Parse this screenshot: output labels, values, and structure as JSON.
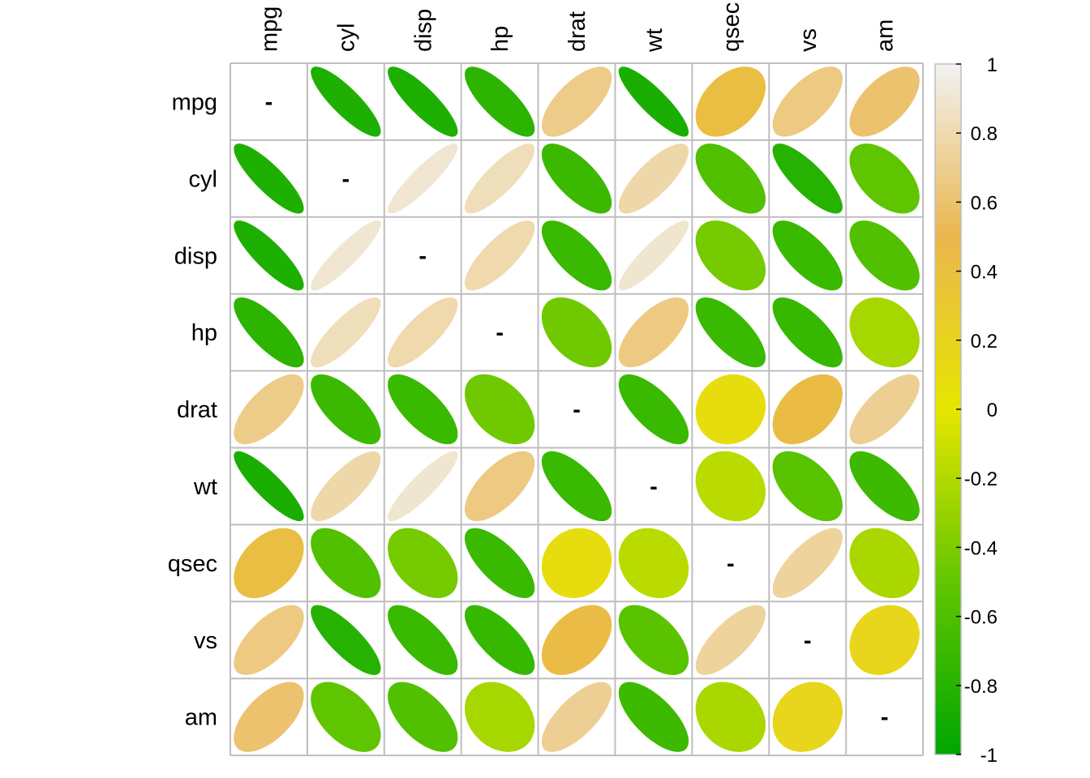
{
  "chart_data": {
    "type": "heatmap",
    "variables": [
      "mpg",
      "cyl",
      "disp",
      "hp",
      "drat",
      "wt",
      "qsec",
      "vs",
      "am"
    ],
    "matrix": [
      [
        1,
        -0.85,
        -0.85,
        -0.78,
        0.68,
        -0.87,
        0.42,
        0.66,
        0.6
      ],
      [
        -0.85,
        1,
        0.9,
        0.83,
        -0.7,
        0.78,
        -0.59,
        -0.81,
        -0.52
      ],
      [
        -0.85,
        0.9,
        1,
        0.79,
        -0.71,
        0.89,
        -0.43,
        -0.71,
        -0.59
      ],
      [
        -0.78,
        0.83,
        0.79,
        1,
        -0.45,
        0.66,
        -0.71,
        -0.72,
        -0.24
      ],
      [
        0.68,
        -0.7,
        -0.71,
        -0.45,
        1,
        -0.71,
        0.09,
        0.44,
        0.71
      ],
      [
        -0.87,
        0.78,
        0.89,
        0.66,
        -0.71,
        1,
        -0.17,
        -0.55,
        -0.69
      ],
      [
        0.42,
        -0.59,
        -0.43,
        -0.71,
        0.09,
        -0.17,
        1,
        0.74,
        -0.23
      ],
      [
        0.66,
        -0.81,
        -0.71,
        -0.72,
        0.44,
        -0.55,
        0.74,
        1,
        0.17
      ],
      [
        0.6,
        -0.52,
        -0.59,
        -0.24,
        0.71,
        -0.69,
        -0.23,
        0.17,
        1
      ]
    ],
    "diagonal_label": "-",
    "shape": "ellipse",
    "color_scale": {
      "domain": [
        -1,
        -0.5,
        0,
        0.5,
        1
      ],
      "colors": [
        "#00A600",
        "#63C600",
        "#E6E600",
        "#EAB64E",
        "#F2F2F2"
      ]
    },
    "legend": {
      "position": "right",
      "ticks": [
        "1",
        "0.8",
        "0.6",
        "0.4",
        "0.2",
        "0",
        "-0.2",
        "-0.4",
        "-0.6",
        "-0.8",
        "-1"
      ]
    },
    "grid": true
  }
}
